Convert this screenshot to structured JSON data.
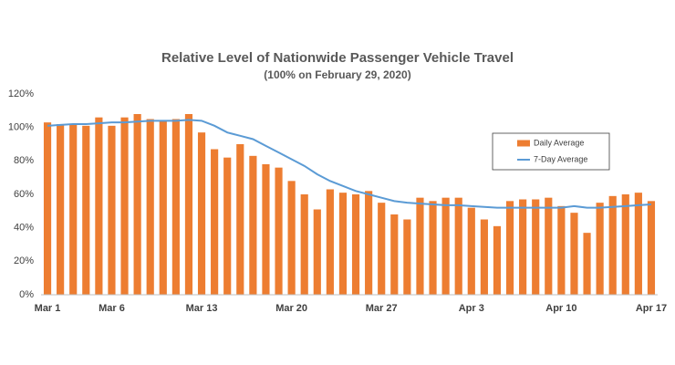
{
  "chart_data": {
    "type": "bar",
    "title": "Relative Level of Nationwide Passenger Vehicle Travel",
    "subtitle": "(100% on February 29, 2020)",
    "categories": [
      "Mar 1",
      null,
      null,
      null,
      null,
      "Mar 6",
      null,
      null,
      null,
      null,
      null,
      null,
      "Mar 13",
      null,
      null,
      null,
      null,
      null,
      null,
      "Mar 20",
      null,
      null,
      null,
      null,
      null,
      null,
      "Mar 27",
      null,
      null,
      null,
      null,
      null,
      null,
      "Apr 3",
      null,
      null,
      null,
      null,
      null,
      null,
      "Apr 10",
      null,
      null,
      null,
      null,
      null,
      null,
      "Apr 17"
    ],
    "series": [
      {
        "name": "Daily Average",
        "color": "#ed7d31",
        "type": "bar",
        "values": [
          103,
          102,
          102,
          101,
          106,
          101,
          106,
          108,
          105,
          104,
          105,
          108,
          97,
          87,
          82,
          90,
          83,
          78,
          76,
          68,
          60,
          51,
          63,
          61,
          60,
          62,
          55,
          48,
          45,
          58,
          56,
          58,
          58,
          52,
          45,
          41,
          56,
          57,
          57,
          58,
          53,
          49,
          37,
          55,
          59,
          60,
          61,
          56
        ]
      },
      {
        "name": "7-Day Average",
        "color": "#5b9bd5",
        "type": "line",
        "values": [
          101,
          101.5,
          102,
          102,
          102.5,
          103,
          103,
          103.5,
          104,
          104,
          104,
          104.5,
          104,
          101,
          97,
          95,
          93,
          89,
          85,
          81,
          77,
          72,
          68,
          65,
          62,
          60,
          58,
          56,
          55,
          54.5,
          54,
          53.5,
          53.5,
          53,
          52.5,
          52,
          52,
          52,
          52,
          52,
          52,
          53,
          52,
          52,
          52.5,
          53,
          53.5,
          54
        ]
      }
    ],
    "ylim": [
      0,
      120
    ],
    "yticks": [
      {
        "value": 0,
        "label": "0%"
      },
      {
        "value": 20,
        "label": "20%"
      },
      {
        "value": 40,
        "label": "40%"
      },
      {
        "value": 60,
        "label": "60%"
      },
      {
        "value": 80,
        "label": "80%"
      },
      {
        "value": 100,
        "label": "100%"
      },
      {
        "value": 120,
        "label": "120%"
      }
    ],
    "grid": false
  }
}
